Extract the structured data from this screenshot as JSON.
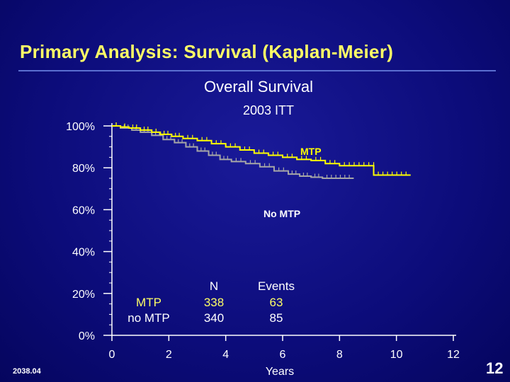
{
  "slide": {
    "title": "Primary Analysis: Survival (Kaplan-Meier)",
    "subtitle": "Overall Survival",
    "subtitle2": "2003 ITT",
    "footer_code": "2038.04",
    "page_number": "12"
  },
  "colors": {
    "background": "#0c0c7a",
    "title": "#ffff66",
    "mtp": "#ffff00",
    "no_mtp": "#a6a6a6",
    "axis": "#ffffff"
  },
  "stats_table": {
    "row_labels": [
      "MTP",
      "no MTP"
    ],
    "n_header": "N",
    "events_header": "Events",
    "n_values": [
      "338",
      "340"
    ],
    "events_values": [
      "63",
      "85"
    ]
  },
  "chart_data": {
    "type": "line",
    "xlabel": "Years",
    "ylabel": "",
    "xlim": [
      0,
      12
    ],
    "ylim": [
      0,
      100
    ],
    "x_ticks": [
      "0",
      "2",
      "4",
      "6",
      "8",
      "10",
      "12"
    ],
    "y_ticks": [
      "0%",
      "20%",
      "40%",
      "60%",
      "80%",
      "100%"
    ],
    "series": [
      {
        "name": "MTP",
        "label": "MTP",
        "points": [
          [
            0,
            100
          ],
          [
            0.3,
            99.5
          ],
          [
            0.6,
            99
          ],
          [
            1.0,
            98
          ],
          [
            1.4,
            97
          ],
          [
            1.7,
            96
          ],
          [
            2.1,
            95
          ],
          [
            2.5,
            94
          ],
          [
            3.0,
            93
          ],
          [
            3.5,
            91.5
          ],
          [
            4.0,
            90
          ],
          [
            4.5,
            88.5
          ],
          [
            5.0,
            87
          ],
          [
            5.5,
            86
          ],
          [
            6.0,
            85
          ],
          [
            6.5,
            84
          ],
          [
            7.0,
            83.5
          ],
          [
            7.5,
            82
          ],
          [
            8.0,
            81
          ],
          [
            9.2,
            81
          ],
          [
            9.2,
            76.5
          ],
          [
            10.5,
            76.5
          ]
        ]
      },
      {
        "name": "No MTP",
        "label": "No MTP",
        "points": [
          [
            0,
            100
          ],
          [
            0.3,
            99
          ],
          [
            0.7,
            98
          ],
          [
            1.0,
            97
          ],
          [
            1.4,
            95.5
          ],
          [
            1.8,
            93.5
          ],
          [
            2.2,
            92
          ],
          [
            2.6,
            90
          ],
          [
            3.0,
            88
          ],
          [
            3.4,
            86
          ],
          [
            3.8,
            84
          ],
          [
            4.2,
            83
          ],
          [
            4.7,
            82
          ],
          [
            5.2,
            80.5
          ],
          [
            5.7,
            78.5
          ],
          [
            6.2,
            77
          ],
          [
            6.6,
            76
          ],
          [
            7.0,
            75.5
          ],
          [
            7.4,
            75
          ],
          [
            8.5,
            75
          ]
        ]
      }
    ]
  }
}
